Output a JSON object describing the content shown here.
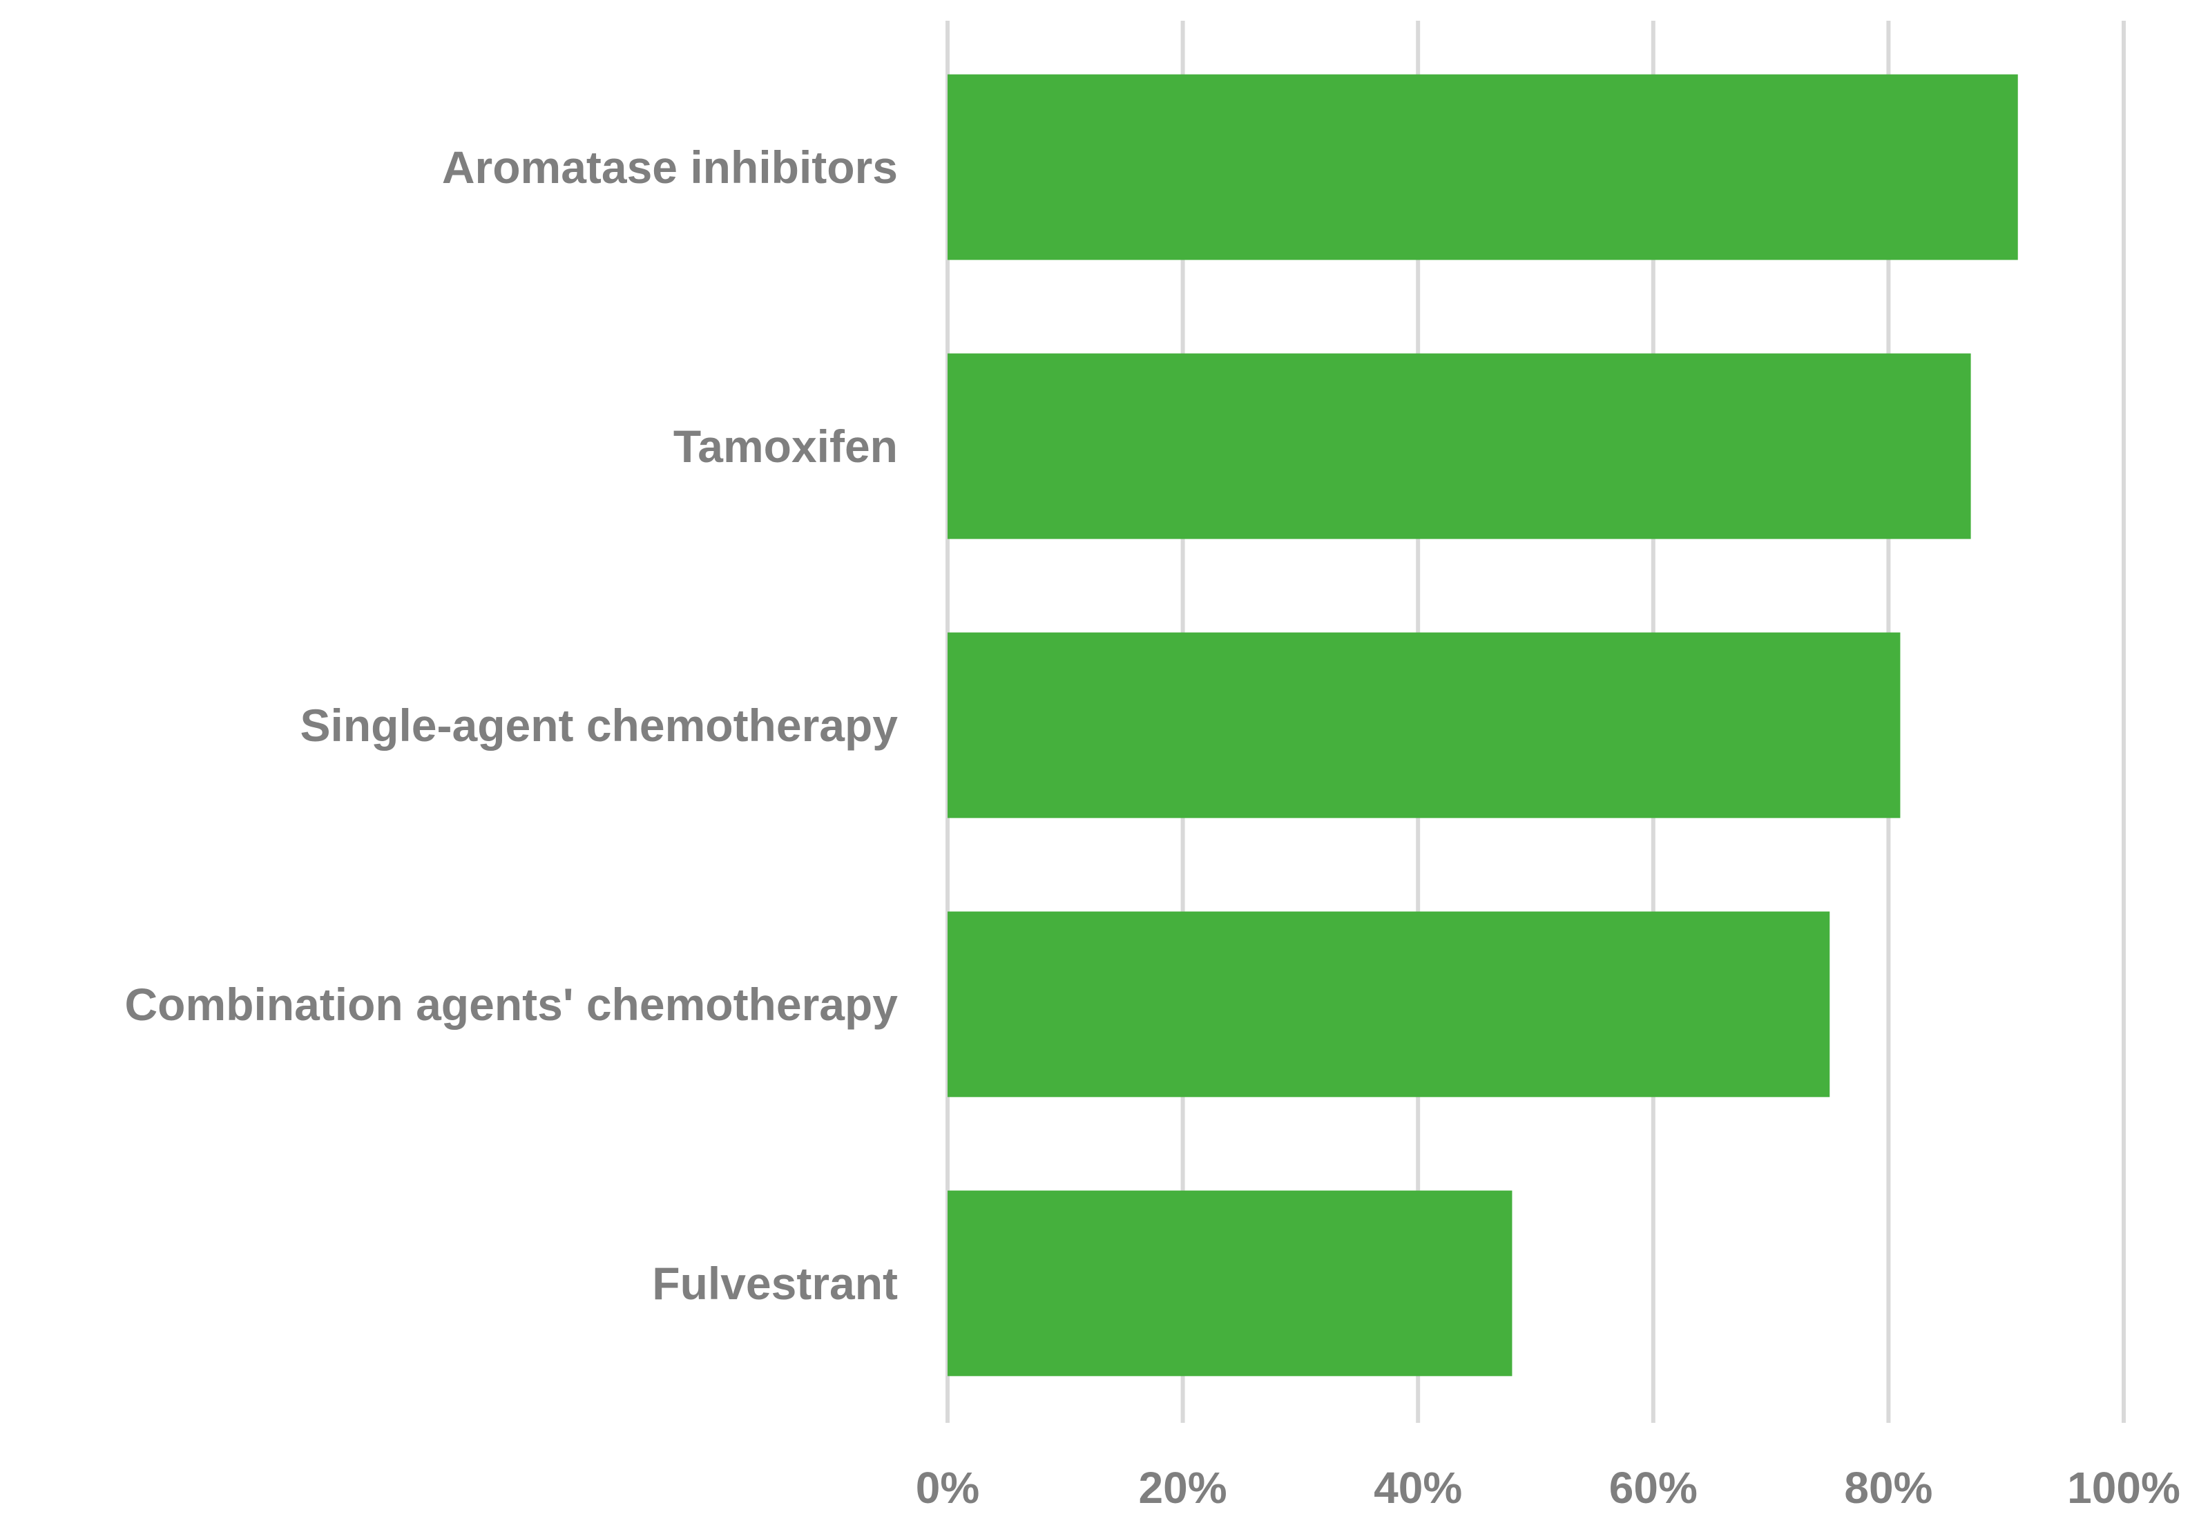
{
  "chart_data": {
    "type": "bar",
    "orientation": "horizontal",
    "categories": [
      "Aromatase inhibitors",
      "Tamoxifen",
      "Single-agent chemotherapy",
      "Combination agents' chemotherapy",
      "Fulvestrant"
    ],
    "values": [
      91,
      87,
      81,
      75,
      48
    ],
    "value_unit": "%",
    "title": "",
    "xlabel": "",
    "ylabel": "",
    "xlim": [
      0,
      100
    ],
    "x_ticks": [
      "0%",
      "20%",
      "40%",
      "60%",
      "80%",
      "100%"
    ],
    "x_tick_values": [
      0,
      20,
      40,
      60,
      80,
      100
    ],
    "grid": true,
    "legend": "none",
    "colors": {
      "bar": "#45b03d",
      "grid": "#d9d9d9",
      "text": "#7f7f7f"
    }
  }
}
